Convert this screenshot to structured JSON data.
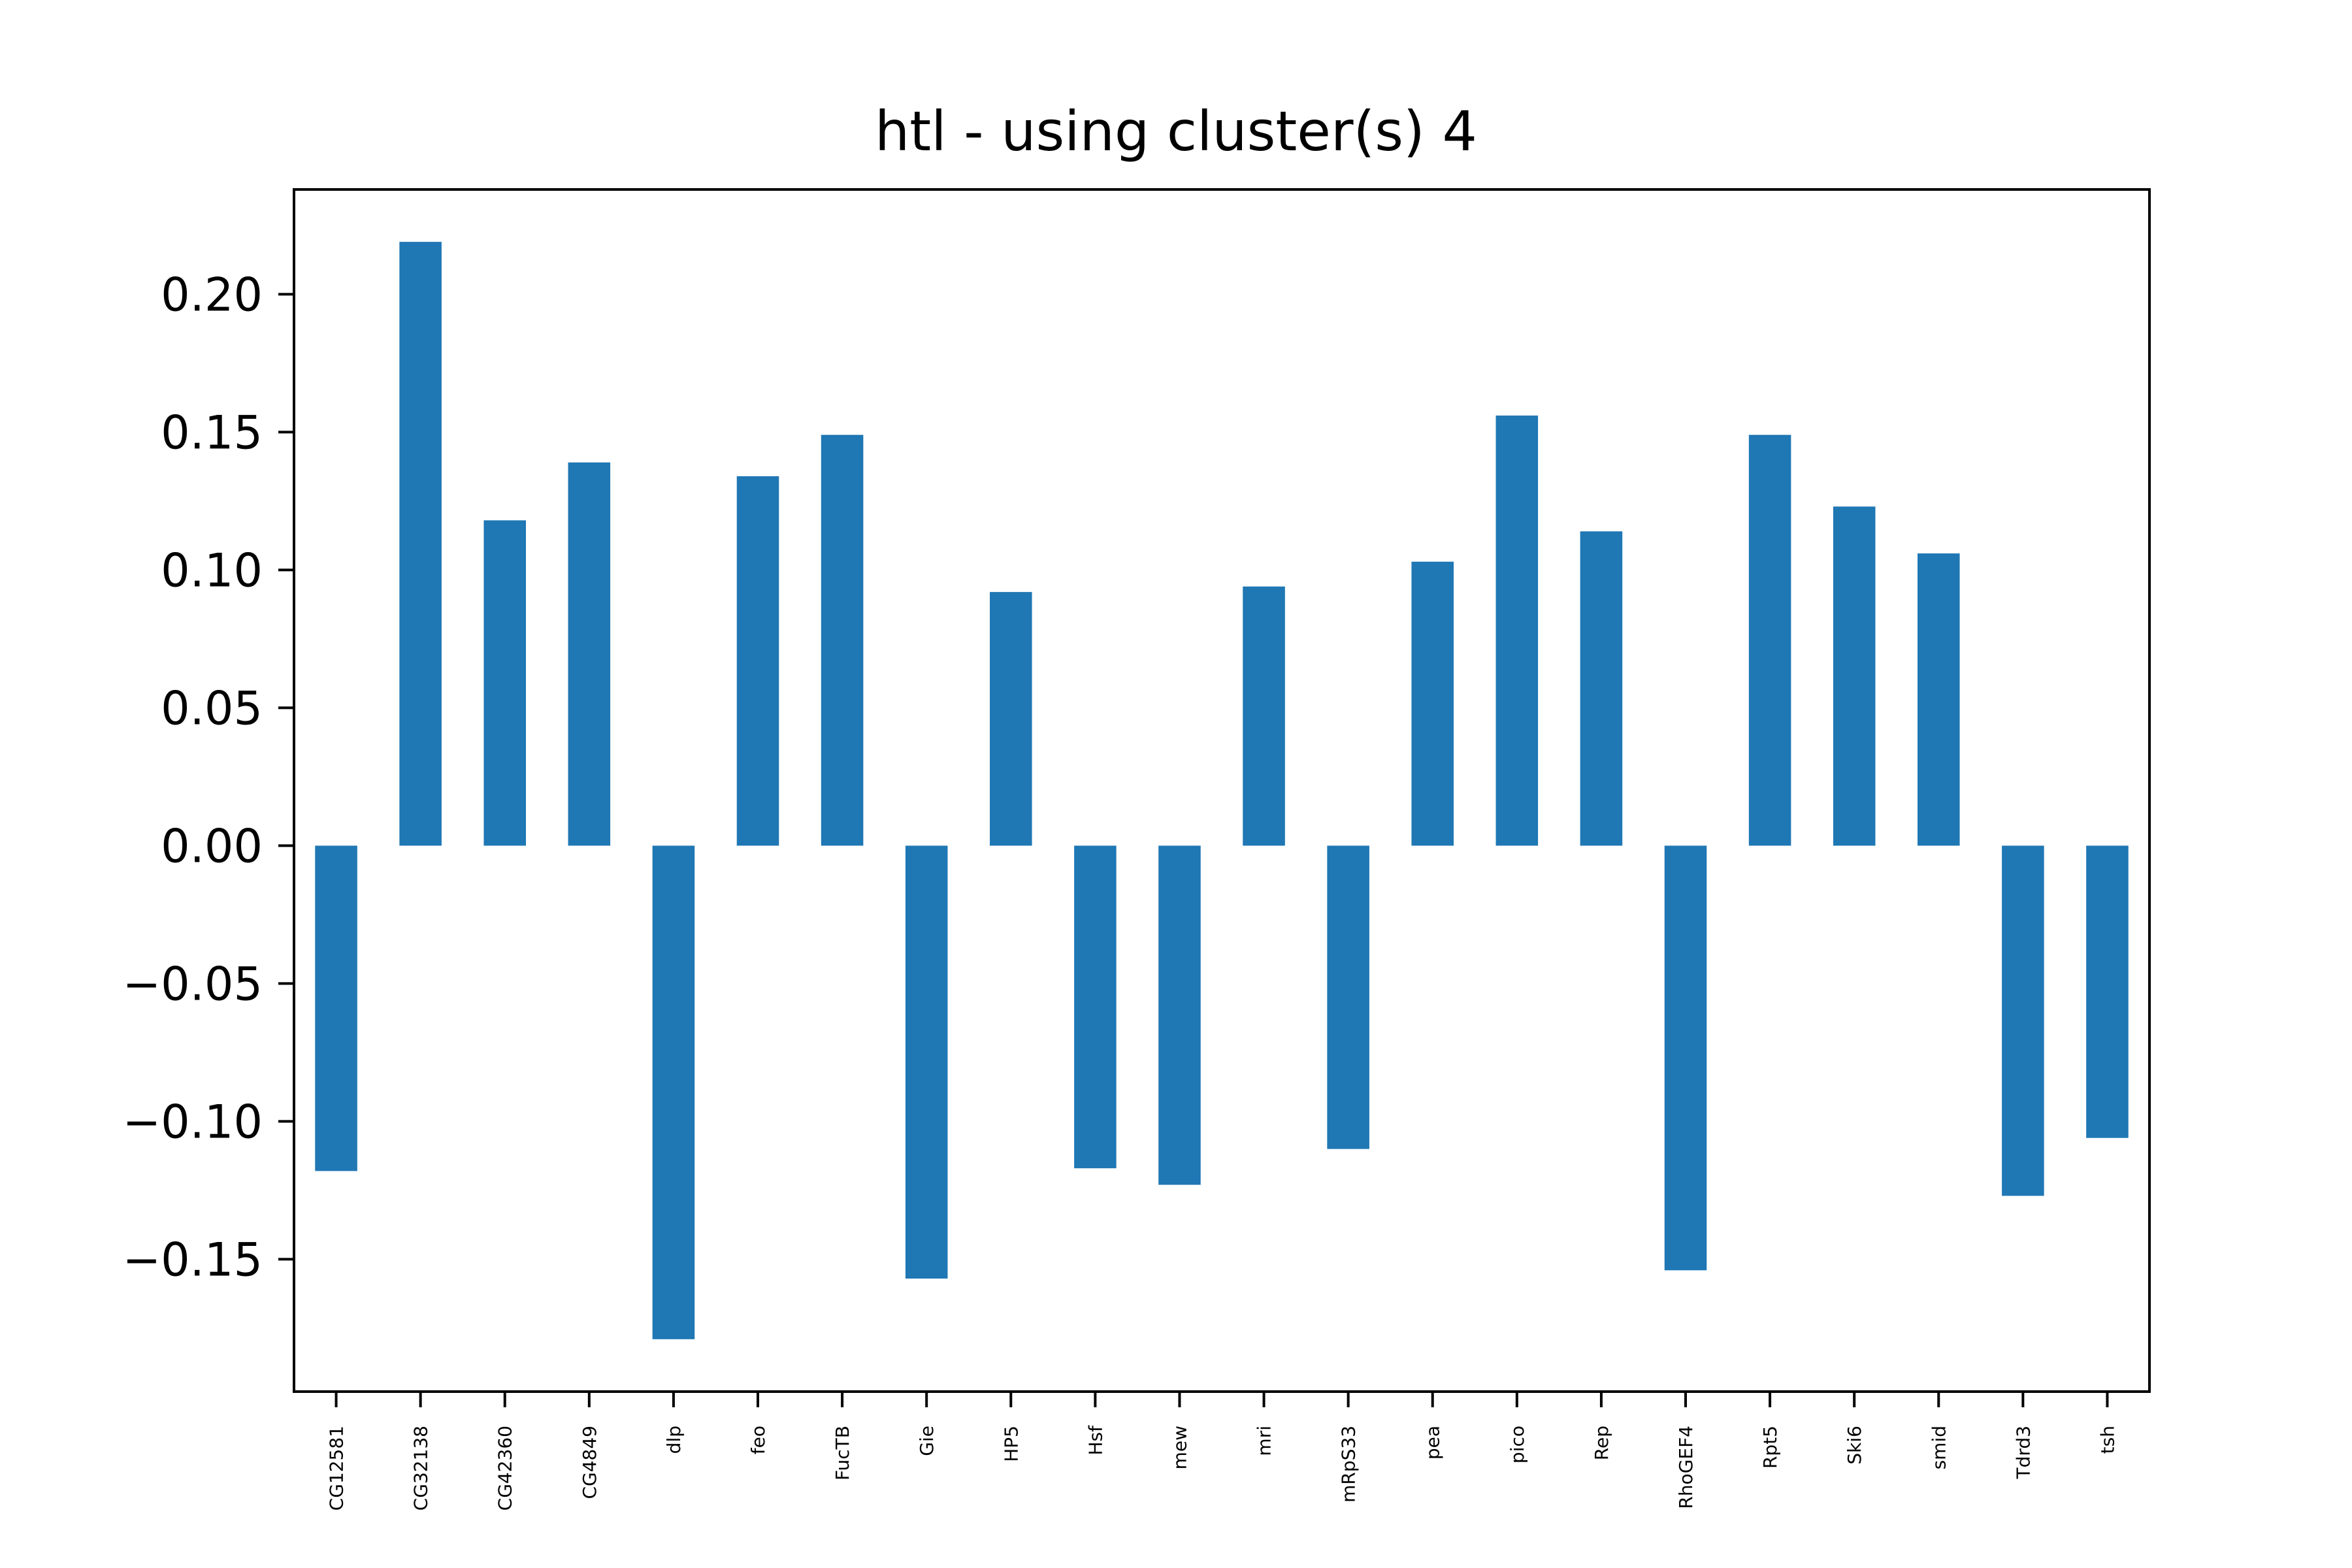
{
  "chart_data": {
    "type": "bar",
    "title": "htl - using cluster(s) 4",
    "xlabel": "",
    "ylabel": "",
    "categories": [
      "CG12581",
      "CG32138",
      "CG42360",
      "CG4849",
      "dlp",
      "feo",
      "FucTB",
      "Gie",
      "HP5",
      "Hsf",
      "mew",
      "mri",
      "mRpS33",
      "pea",
      "pico",
      "Rep",
      "RhoGEF4",
      "Rpt5",
      "Ski6",
      "smid",
      "Tdrd3",
      "tsh"
    ],
    "values": [
      -0.118,
      0.219,
      0.118,
      0.139,
      -0.179,
      0.134,
      0.149,
      -0.157,
      0.092,
      -0.117,
      -0.123,
      0.094,
      -0.11,
      0.103,
      0.156,
      0.114,
      -0.154,
      0.149,
      0.123,
      0.106,
      -0.127,
      -0.106
    ],
    "yticks": [
      -0.15,
      -0.1,
      -0.05,
      0.0,
      0.05,
      0.1,
      0.15,
      0.2
    ],
    "ytick_labels": [
      "−0.15",
      "−0.10",
      "−0.05",
      "0.00",
      "0.05",
      "0.10",
      "0.15",
      "0.20"
    ],
    "ylim": [
      -0.198,
      0.238
    ],
    "grid": false,
    "legend": "none",
    "bar_color": "#1f77b4"
  }
}
